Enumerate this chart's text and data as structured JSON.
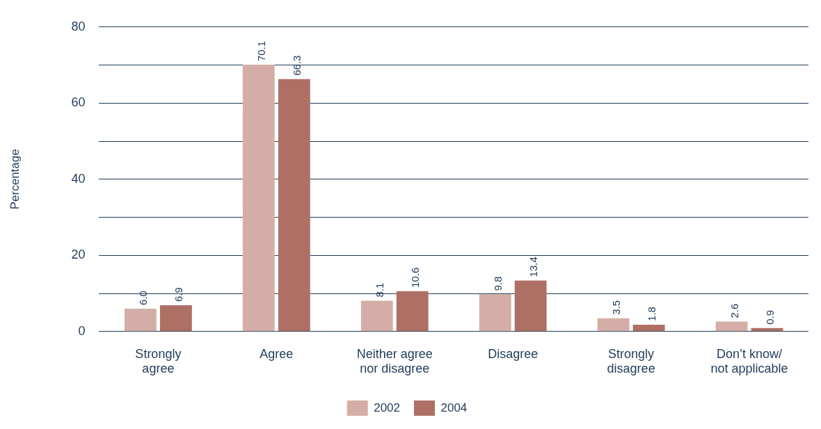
{
  "chart_data": {
    "type": "bar",
    "ylabel": "Percentage",
    "categories": [
      "Strongly agree",
      "Agree",
      "Neither agree nor disagree",
      "Disagree",
      "Strongly disagree",
      "Don’t know/ not applicable"
    ],
    "series": [
      {
        "name": "2002",
        "color": "#d4aea6",
        "values": [
          6.0,
          70.1,
          8.1,
          9.8,
          3.5,
          2.6
        ],
        "value_labels": [
          "6.0",
          "70.1",
          "8.1",
          "9.8",
          "3.5",
          "2.6"
        ]
      },
      {
        "name": "2004",
        "color": "#ae7064",
        "values": [
          6.9,
          66.3,
          10.6,
          13.4,
          1.8,
          0.9
        ],
        "value_labels": [
          "6.9",
          "66.3",
          "10.6",
          "13.4",
          "1.8",
          "0.9"
        ]
      }
    ],
    "ylim": [
      0,
      80
    ],
    "yticks": [
      0,
      {
        "value": 10,
        "label": null
      },
      20,
      {
        "value": 30,
        "label": null
      },
      40,
      {
        "value": 50,
        "label": null
      },
      60,
      {
        "value": 70,
        "label": null
      },
      80
    ],
    "grid": "y",
    "legend": "bottom"
  }
}
